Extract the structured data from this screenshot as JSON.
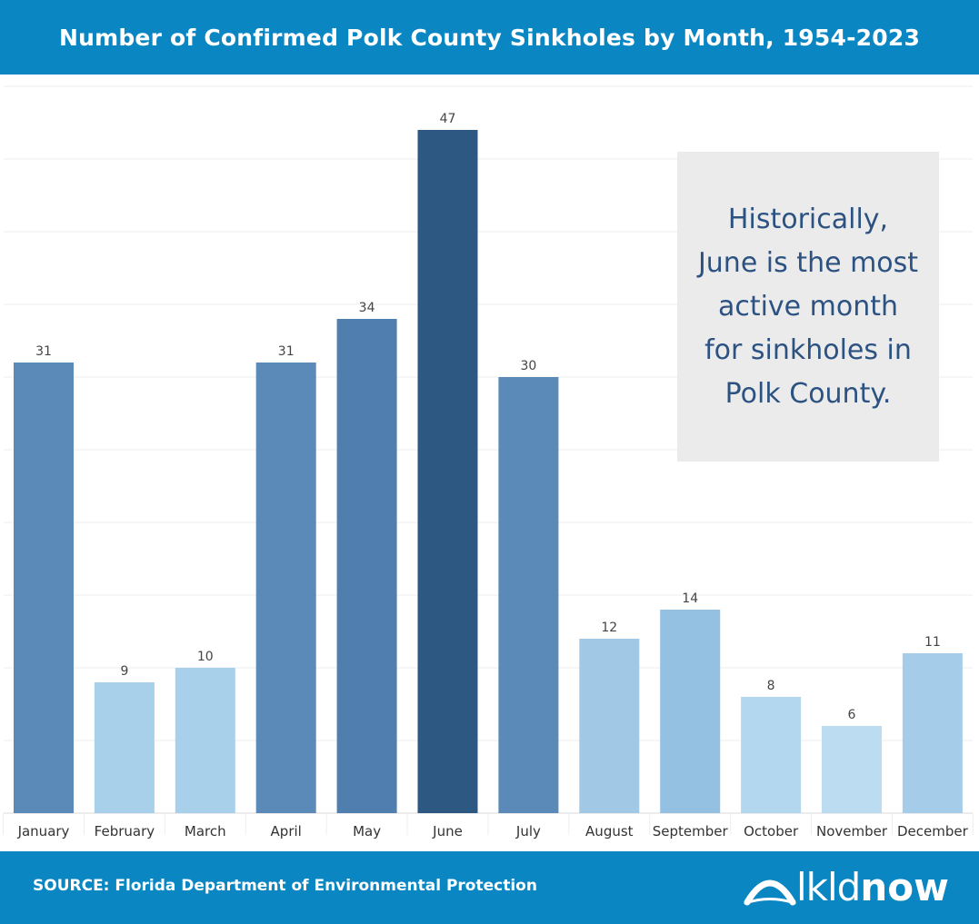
{
  "header": {
    "title": "Number of Confirmed Polk County Sinkholes by Month, 1954-2023"
  },
  "callout": {
    "text": "Historically, June is the most active month for sinkholes in Polk County."
  },
  "footer": {
    "source": "SOURCE: Florida Department of Environmental Protection",
    "logo_light": "lkld",
    "logo_bold": "now"
  },
  "chart_data": {
    "type": "bar",
    "title": "Number of Confirmed Polk County Sinkholes by Month, 1954-2023",
    "xlabel": "",
    "ylabel": "",
    "categories": [
      "January",
      "February",
      "March",
      "April",
      "May",
      "June",
      "July",
      "August",
      "September",
      "October",
      "November",
      "December"
    ],
    "values": [
      31,
      9,
      10,
      31,
      34,
      47,
      30,
      12,
      14,
      8,
      6,
      11
    ],
    "ylim": [
      0,
      50
    ],
    "grid": true,
    "colors": [
      "#5b8ab8",
      "#a8d0eb",
      "#a8d0eb",
      "#5b8ab8",
      "#4f7eaf",
      "#2c5881",
      "#5b8ab8",
      "#a1c9e6",
      "#94c1e2",
      "#b3d7ee",
      "#bbdcf1",
      "#a5cce9"
    ]
  }
}
